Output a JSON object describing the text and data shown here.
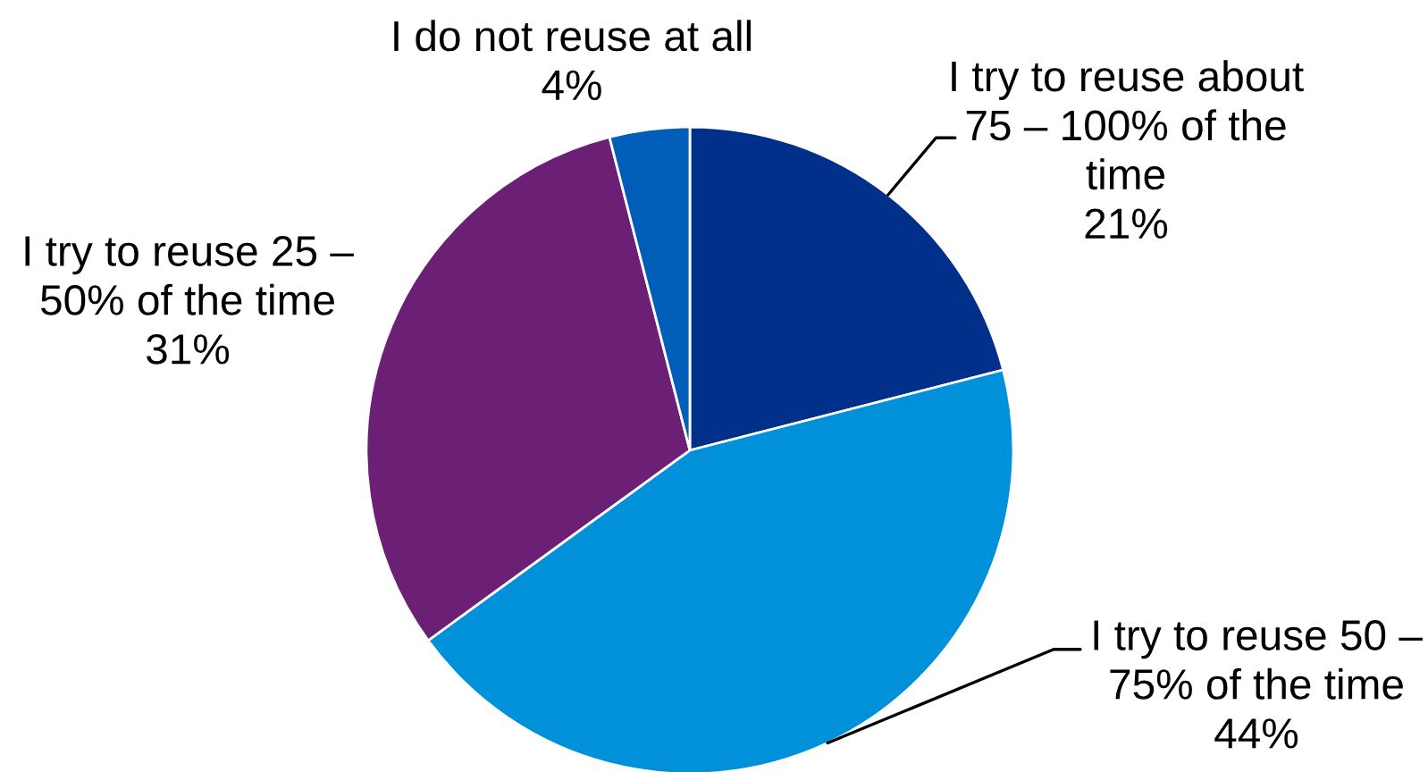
{
  "chart_data": {
    "type": "pie",
    "categories": [
      "I try to reuse about\n75 – 100% of the\ntime",
      "I try to reuse 50 –\n75% of the time",
      "I try to reuse 25 –\n50% of the time",
      "I do not reuse at all"
    ],
    "values": [
      21,
      44,
      31,
      4
    ],
    "value_labels": [
      "21%",
      "44%",
      "31%",
      "4%"
    ],
    "colors": [
      "#00308a",
      "#0091da",
      "#6b1f75",
      "#005eb8"
    ]
  }
}
